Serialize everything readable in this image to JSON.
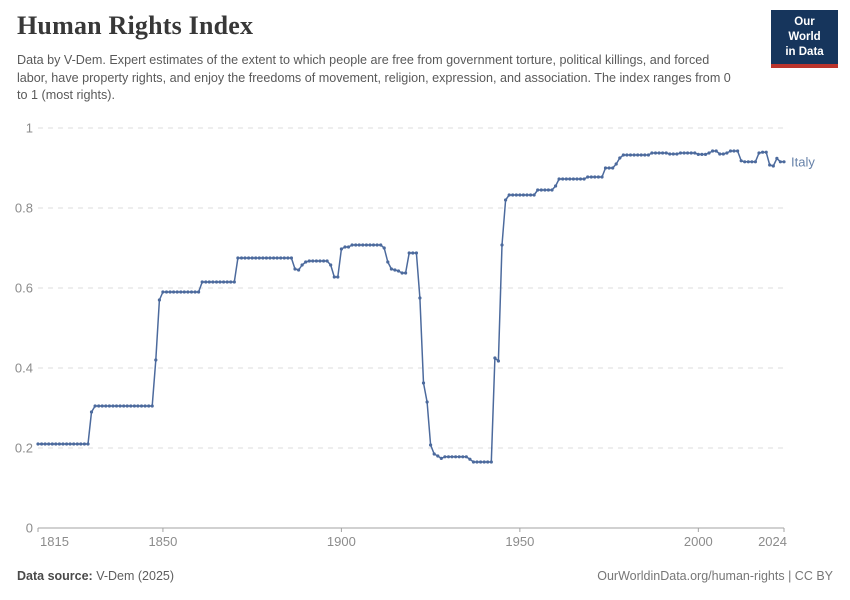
{
  "header": {
    "title": "Human Rights Index",
    "subtitle": "Data by V-Dem. Expert estimates of the extent to which people are free from government torture, political killings, and forced labor, have property rights, and enjoy the freedoms of movement, religion, expression, and association. The index ranges from 0 to 1 (most rights).",
    "logo": {
      "line1": "Our World",
      "line2": "in Data"
    }
  },
  "footer": {
    "source_label": "Data source:",
    "source_value": " V-Dem (2025)",
    "attribution": "OurWorldinData.org/human-rights | CC BY"
  },
  "colors": {
    "line": "#4c6a9d",
    "entity_label": "#6782a9",
    "grid": "#dedede",
    "axis_line": "#a3a3a3",
    "axis_text": "#8c8c8c",
    "logo_bg": "#16355c",
    "logo_red": "#bb342c"
  },
  "chart_data": {
    "type": "line",
    "title": "Human Rights Index",
    "xlabel": "",
    "ylabel": "",
    "xlim": [
      1815,
      2024
    ],
    "ylim": [
      0,
      1
    ],
    "x_ticks": [
      1815,
      1850,
      1900,
      1950,
      2000,
      2024
    ],
    "y_ticks": [
      0,
      0.2,
      0.4,
      0.6,
      0.8,
      1
    ],
    "grid": true,
    "legend_position": "end-of-line",
    "series": [
      {
        "name": "Italy",
        "start_year": 1815,
        "end_year": 2024,
        "values": [
          0.21,
          0.21,
          0.21,
          0.21,
          0.21,
          0.21,
          0.21,
          0.21,
          0.21,
          0.21,
          0.21,
          0.21,
          0.21,
          0.21,
          0.21,
          0.29,
          0.305,
          0.305,
          0.305,
          0.305,
          0.305,
          0.305,
          0.305,
          0.305,
          0.305,
          0.305,
          0.305,
          0.305,
          0.305,
          0.305,
          0.305,
          0.305,
          0.305,
          0.42,
          0.57,
          0.59,
          0.59,
          0.59,
          0.59,
          0.59,
          0.59,
          0.59,
          0.59,
          0.59,
          0.59,
          0.59,
          0.615,
          0.615,
          0.615,
          0.615,
          0.615,
          0.615,
          0.615,
          0.615,
          0.615,
          0.615,
          0.675,
          0.675,
          0.675,
          0.675,
          0.675,
          0.675,
          0.675,
          0.675,
          0.675,
          0.675,
          0.675,
          0.675,
          0.675,
          0.675,
          0.675,
          0.675,
          0.6475,
          0.645,
          0.6575,
          0.665,
          0.6675,
          0.6675,
          0.6675,
          0.6675,
          0.6675,
          0.6675,
          0.6575,
          0.6275,
          0.6275,
          0.6975,
          0.7025,
          0.7025,
          0.7075,
          0.7075,
          0.7075,
          0.7075,
          0.7075,
          0.7075,
          0.7075,
          0.7075,
          0.7075,
          0.7,
          0.665,
          0.6475,
          0.645,
          0.6425,
          0.6375,
          0.6375,
          0.6875,
          0.6875,
          0.6875,
          0.575,
          0.3625,
          0.315,
          0.2075,
          0.185,
          0.18,
          0.174,
          0.178,
          0.178,
          0.178,
          0.178,
          0.178,
          0.178,
          0.178,
          0.172,
          0.165,
          0.165,
          0.165,
          0.165,
          0.165,
          0.165,
          0.425,
          0.4175,
          0.7075,
          0.82,
          0.8325,
          0.8325,
          0.8325,
          0.8325,
          0.8325,
          0.8325,
          0.8325,
          0.8325,
          0.845,
          0.845,
          0.845,
          0.845,
          0.845,
          0.855,
          0.8725,
          0.8725,
          0.8725,
          0.8725,
          0.8725,
          0.8725,
          0.8725,
          0.8725,
          0.8775,
          0.8775,
          0.8775,
          0.8775,
          0.8775,
          0.9,
          0.9,
          0.9,
          0.91,
          0.925,
          0.9325,
          0.9325,
          0.9325,
          0.9325,
          0.9325,
          0.9325,
          0.9325,
          0.9325,
          0.9375,
          0.9375,
          0.9375,
          0.9375,
          0.9375,
          0.935,
          0.935,
          0.935,
          0.9375,
          0.9375,
          0.9375,
          0.9375,
          0.9375,
          0.934,
          0.934,
          0.934,
          0.9375,
          0.9425,
          0.9425,
          0.935,
          0.935,
          0.9375,
          0.9425,
          0.9425,
          0.9425,
          0.918,
          0.9155,
          0.9155,
          0.9155,
          0.9155,
          0.9375,
          0.9395,
          0.9395,
          0.9075,
          0.905,
          0.924,
          0.9155,
          0.9155
        ]
      }
    ]
  }
}
